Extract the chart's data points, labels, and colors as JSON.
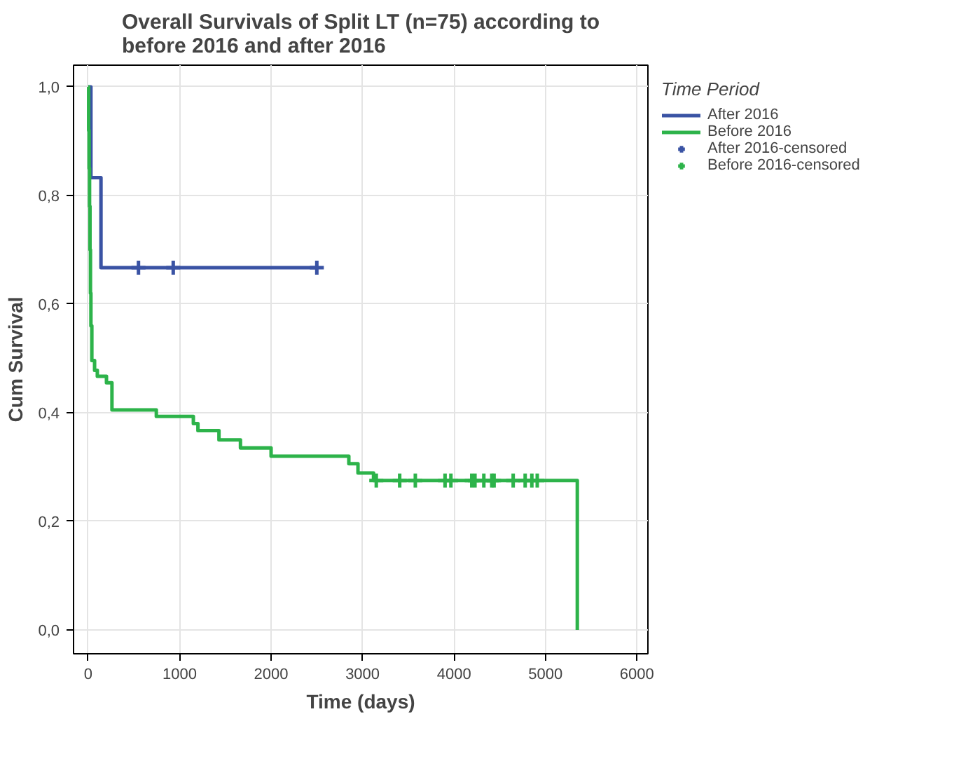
{
  "chart_data": {
    "type": "step",
    "title": "Overall Survivals of Split LT (n=75) according to\nbefore 2016 and after 2016",
    "xlabel": "Time (days)",
    "ylabel": "Cum Survival",
    "legend_title": "Time Period",
    "xlim": [
      -160,
      6120
    ],
    "ylim": [
      -0.044,
      1.04
    ],
    "xticks": [
      0,
      1000,
      2000,
      3000,
      4000,
      5000,
      6000
    ],
    "yticks": [
      {
        "value": 0.0,
        "label": "0,0"
      },
      {
        "value": 0.2,
        "label": "0,2"
      },
      {
        "value": 0.4,
        "label": "0,4"
      },
      {
        "value": 0.6,
        "label": "0,6"
      },
      {
        "value": 0.8,
        "label": "0,8"
      },
      {
        "value": 1.0,
        "label": "1,0"
      }
    ],
    "grid": true,
    "legend": "right",
    "series": [
      {
        "name": "After 2016",
        "color": "#3a53a4",
        "x": [
          0,
          30,
          140,
          2500
        ],
        "values": [
          1.0,
          0.833,
          0.667,
          0.667
        ]
      },
      {
        "name": "Before 2016",
        "color": "#2db34a",
        "x": [
          0,
          5,
          10,
          15,
          20,
          25,
          30,
          40,
          70,
          100,
          200,
          260,
          745,
          1150,
          1200,
          1430,
          1665,
          2000,
          2850,
          2950,
          3120,
          5348
        ],
        "values": [
          1.0,
          0.92,
          0.85,
          0.78,
          0.7,
          0.62,
          0.56,
          0.496,
          0.478,
          0.467,
          0.455,
          0.405,
          0.393,
          0.38,
          0.367,
          0.35,
          0.335,
          0.32,
          0.306,
          0.289,
          0.275,
          0.0
        ]
      },
      {
        "name": "After 2016-censored",
        "type": "scatter",
        "marker": "cross",
        "color": "#3a53a4",
        "x": [
          550,
          930,
          2500
        ],
        "values": [
          0.667,
          0.667,
          0.667
        ]
      },
      {
        "name": "Before 2016-censored",
        "type": "scatter",
        "marker": "cross",
        "color": "#2db34a",
        "x": [
          3150,
          3406,
          3577,
          3902,
          3966,
          4194,
          4229,
          4326,
          4413,
          4438,
          4647,
          4778,
          4851,
          4910
        ],
        "values": [
          0.275,
          0.275,
          0.275,
          0.275,
          0.275,
          0.275,
          0.275,
          0.275,
          0.275,
          0.275,
          0.275,
          0.275,
          0.275,
          0.275
        ]
      }
    ]
  }
}
